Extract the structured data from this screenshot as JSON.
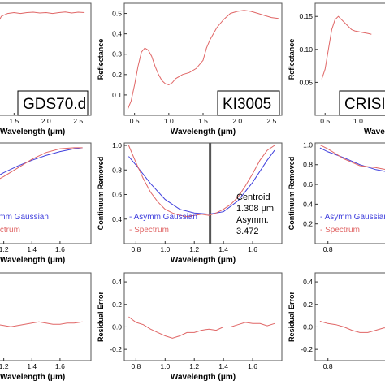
{
  "chart_data": [
    {
      "id": "p-top-left",
      "type": "line",
      "xlabel": "Wavelength (μm)",
      "ylabel": "",
      "xlim": [
        0.9,
        2.7
      ],
      "ylim": [
        0.0,
        0.6
      ],
      "xticks": [
        "1.5",
        "2.0",
        "2.5"
      ],
      "yticks": [],
      "sample_box": "GDS70.d",
      "series": [
        {
          "color": "#e06666",
          "x": [
            0.9,
            1.0,
            1.1,
            1.2,
            1.3,
            1.4,
            1.5,
            1.6,
            1.7,
            1.8,
            1.9,
            2.0,
            2.1,
            2.2,
            2.3,
            2.4,
            2.5,
            2.6
          ],
          "y": [
            0.15,
            0.22,
            0.34,
            0.46,
            0.53,
            0.545,
            0.55,
            0.545,
            0.55,
            0.552,
            0.548,
            0.55,
            0.545,
            0.55,
            0.553,
            0.548,
            0.552,
            0.55
          ]
        }
      ]
    },
    {
      "id": "p-top-mid",
      "type": "line",
      "xlabel": "Wavelength (μm)",
      "ylabel": "Reflectance",
      "xlim": [
        0.35,
        2.65
      ],
      "ylim": [
        0.0,
        0.55
      ],
      "xticks": [
        "0.5",
        "1.0",
        "1.5",
        "2.0",
        "2.5"
      ],
      "yticks": [
        "0.1",
        "0.2",
        "0.3",
        "0.4",
        "0.5"
      ],
      "sample_box": "KI3005",
      "series": [
        {
          "color": "#e06666",
          "x": [
            0.4,
            0.45,
            0.5,
            0.55,
            0.6,
            0.65,
            0.7,
            0.75,
            0.8,
            0.85,
            0.9,
            0.95,
            1.0,
            1.05,
            1.1,
            1.15,
            1.2,
            1.3,
            1.4,
            1.5,
            1.55,
            1.6,
            1.65,
            1.7,
            1.8,
            1.9,
            2.0,
            2.1,
            2.2,
            2.3,
            2.4,
            2.5,
            2.6
          ],
          "y": [
            0.03,
            0.07,
            0.15,
            0.24,
            0.31,
            0.33,
            0.32,
            0.29,
            0.24,
            0.2,
            0.17,
            0.155,
            0.15,
            0.16,
            0.18,
            0.19,
            0.2,
            0.21,
            0.23,
            0.27,
            0.33,
            0.37,
            0.4,
            0.43,
            0.47,
            0.5,
            0.51,
            0.515,
            0.51,
            0.5,
            0.49,
            0.48,
            0.475
          ]
        }
      ]
    },
    {
      "id": "p-top-right",
      "type": "line",
      "xlabel": "Wavele",
      "ylabel": "Reflectance",
      "xlim": [
        0.35,
        1.7
      ],
      "ylim": [
        0.0,
        0.17
      ],
      "xticks": [
        "0.5",
        "1.0"
      ],
      "yticks": [
        "0.05",
        "0.10",
        "0.15"
      ],
      "sample_box": "CRISI",
      "series": [
        {
          "color": "#e06666",
          "x": [
            0.45,
            0.5,
            0.55,
            0.6,
            0.65,
            0.7,
            0.75,
            0.8,
            0.85,
            0.9,
            0.95,
            1.0,
            1.05,
            1.1,
            1.15,
            1.2
          ],
          "y": [
            0.055,
            0.07,
            0.1,
            0.13,
            0.145,
            0.15,
            0.145,
            0.14,
            0.135,
            0.13,
            0.128,
            0.127,
            0.126,
            0.125,
            0.124,
            0.123
          ]
        }
      ]
    },
    {
      "id": "p-mid-left",
      "type": "line",
      "xlabel": "Wavelength (μm)",
      "ylabel": "",
      "xlim": [
        1.0,
        1.82
      ],
      "ylim": [
        0.0,
        1.05
      ],
      "xticks": [
        "1.2",
        "1.4",
        "1.6"
      ],
      "yticks": [],
      "legend": [
        "Asymm Gaussian",
        "Spectrum"
      ],
      "series": [
        {
          "name": "Asymm Gaussian",
          "color": "#4040dd",
          "x": [
            1.0,
            1.1,
            1.2,
            1.3,
            1.4,
            1.5,
            1.6,
            1.7,
            1.76
          ],
          "y": [
            0.58,
            0.66,
            0.74,
            0.81,
            0.87,
            0.92,
            0.96,
            0.99,
            1.0
          ]
        },
        {
          "name": "Spectrum",
          "color": "#e06666",
          "x": [
            1.0,
            1.1,
            1.2,
            1.3,
            1.4,
            1.5,
            1.6,
            1.7,
            1.76
          ],
          "y": [
            0.56,
            0.62,
            0.7,
            0.79,
            0.88,
            0.95,
            0.99,
            1.0,
            1.0
          ]
        }
      ]
    },
    {
      "id": "p-mid-mid",
      "type": "line",
      "xlabel": "Wavelength (μm)",
      "ylabel": "Continuum Removed",
      "xlim": [
        0.72,
        1.8
      ],
      "ylim": [
        0.2,
        1.02
      ],
      "xticks": [
        "0.8",
        "1.0",
        "1.2",
        "1.4",
        "1.6"
      ],
      "yticks": [
        "0.4",
        "0.6",
        "0.8",
        "1.0"
      ],
      "legend": [
        "Asymm Gaussian",
        "Spectrum"
      ],
      "annotation": [
        "Centroid",
        "1.308 μm",
        "Asymm.",
        "3.472"
      ],
      "centroid_line_x": 1.308,
      "series": [
        {
          "name": "Asymm Gaussian",
          "color": "#4040dd",
          "x": [
            0.75,
            0.8,
            0.9,
            1.0,
            1.1,
            1.2,
            1.3,
            1.4,
            1.5,
            1.6,
            1.7,
            1.75
          ],
          "y": [
            0.91,
            0.84,
            0.69,
            0.56,
            0.48,
            0.45,
            0.44,
            0.46,
            0.55,
            0.7,
            0.88,
            0.96
          ]
        },
        {
          "name": "Spectrum",
          "color": "#e06666",
          "x": [
            0.75,
            0.8,
            0.85,
            0.9,
            0.95,
            1.0,
            1.05,
            1.1,
            1.15,
            1.2,
            1.25,
            1.3,
            1.35,
            1.4,
            1.45,
            1.5,
            1.55,
            1.6,
            1.65,
            1.7,
            1.75
          ],
          "y": [
            1.0,
            0.86,
            0.73,
            0.62,
            0.54,
            0.48,
            0.45,
            0.43,
            0.42,
            0.43,
            0.44,
            0.43,
            0.45,
            0.48,
            0.52,
            0.58,
            0.67,
            0.77,
            0.88,
            0.96,
            1.0
          ]
        }
      ]
    },
    {
      "id": "p-mid-right",
      "type": "line",
      "xlabel": "",
      "ylabel": "Continuum Removed",
      "xlim": [
        0.72,
        1.28
      ],
      "ylim": [
        0.0,
        1.02
      ],
      "xticks": [
        "0.8"
      ],
      "yticks": [
        "0.2",
        "0.4",
        "0.6",
        "0.8",
        "1.0"
      ],
      "legend": [
        "Asymm Gaussian",
        "Spectrum"
      ],
      "series": [
        {
          "name": "Asymm Gaussian",
          "color": "#4040dd",
          "x": [
            0.75,
            0.8,
            0.9,
            1.0,
            1.1,
            1.2,
            1.3
          ],
          "y": [
            0.97,
            0.93,
            0.87,
            0.8,
            0.75,
            0.72,
            0.71
          ]
        },
        {
          "name": "Spectrum",
          "color": "#e06666",
          "x": [
            0.75,
            0.8,
            0.9,
            1.0,
            1.1,
            1.2,
            1.3
          ],
          "y": [
            1.0,
            0.96,
            0.86,
            0.79,
            0.77,
            0.74,
            0.73
          ]
        }
      ]
    },
    {
      "id": "p-bot-left",
      "type": "line",
      "xlabel": "Wavelength (μm)",
      "ylabel": "",
      "xlim": [
        1.0,
        1.82
      ],
      "ylim": [
        -0.3,
        0.4
      ],
      "xticks": [
        "1.2",
        "1.4",
        "1.6"
      ],
      "yticks": [],
      "series": [
        {
          "color": "#e06666",
          "x": [
            1.0,
            1.05,
            1.1,
            1.15,
            1.2,
            1.25,
            1.3,
            1.35,
            1.4,
            1.45,
            1.5,
            1.55,
            1.6,
            1.65,
            1.7,
            1.76
          ],
          "y": [
            0.02,
            0.01,
            0.0,
            -0.01,
            -0.02,
            -0.03,
            -0.02,
            -0.01,
            0.0,
            0.01,
            0.0,
            -0.01,
            -0.01,
            0.0,
            0.0,
            0.01
          ]
        }
      ]
    },
    {
      "id": "p-bot-mid",
      "type": "line",
      "xlabel": "Wavelength (μm)",
      "ylabel": "Residual Error",
      "xlim": [
        0.72,
        1.8
      ],
      "ylim": [
        -0.3,
        0.48
      ],
      "xticks": [
        "0.8",
        "1.0",
        "1.2",
        "1.4",
        "1.6"
      ],
      "yticks": [
        "-0.2",
        "0.0",
        "0.2",
        "0.4"
      ],
      "series": [
        {
          "color": "#e06666",
          "x": [
            0.75,
            0.8,
            0.85,
            0.9,
            0.95,
            1.0,
            1.05,
            1.1,
            1.15,
            1.2,
            1.25,
            1.3,
            1.35,
            1.4,
            1.45,
            1.5,
            1.55,
            1.6,
            1.65,
            1.7,
            1.75
          ],
          "y": [
            0.09,
            0.04,
            0.02,
            -0.02,
            -0.05,
            -0.08,
            -0.1,
            -0.08,
            -0.05,
            -0.05,
            -0.03,
            -0.02,
            -0.03,
            0.0,
            0.0,
            0.02,
            0.04,
            0.03,
            0.03,
            0.01,
            0.03
          ]
        }
      ]
    },
    {
      "id": "p-bot-right",
      "type": "line",
      "xlabel": "",
      "ylabel": "Residual Error",
      "xlim": [
        0.72,
        1.28
      ],
      "ylim": [
        -0.3,
        0.48
      ],
      "xticks": [
        "0.8"
      ],
      "yticks": [
        "-0.2",
        "0.0",
        "0.2",
        "0.4"
      ],
      "series": [
        {
          "color": "#e06666",
          "x": [
            0.75,
            0.8,
            0.85,
            0.9,
            0.95,
            1.0,
            1.05,
            1.1,
            1.15,
            1.2,
            1.3
          ],
          "y": [
            0.05,
            0.03,
            0.02,
            0.0,
            -0.03,
            -0.05,
            -0.05,
            -0.03,
            -0.01,
            0.0,
            0.02
          ]
        }
      ]
    }
  ]
}
